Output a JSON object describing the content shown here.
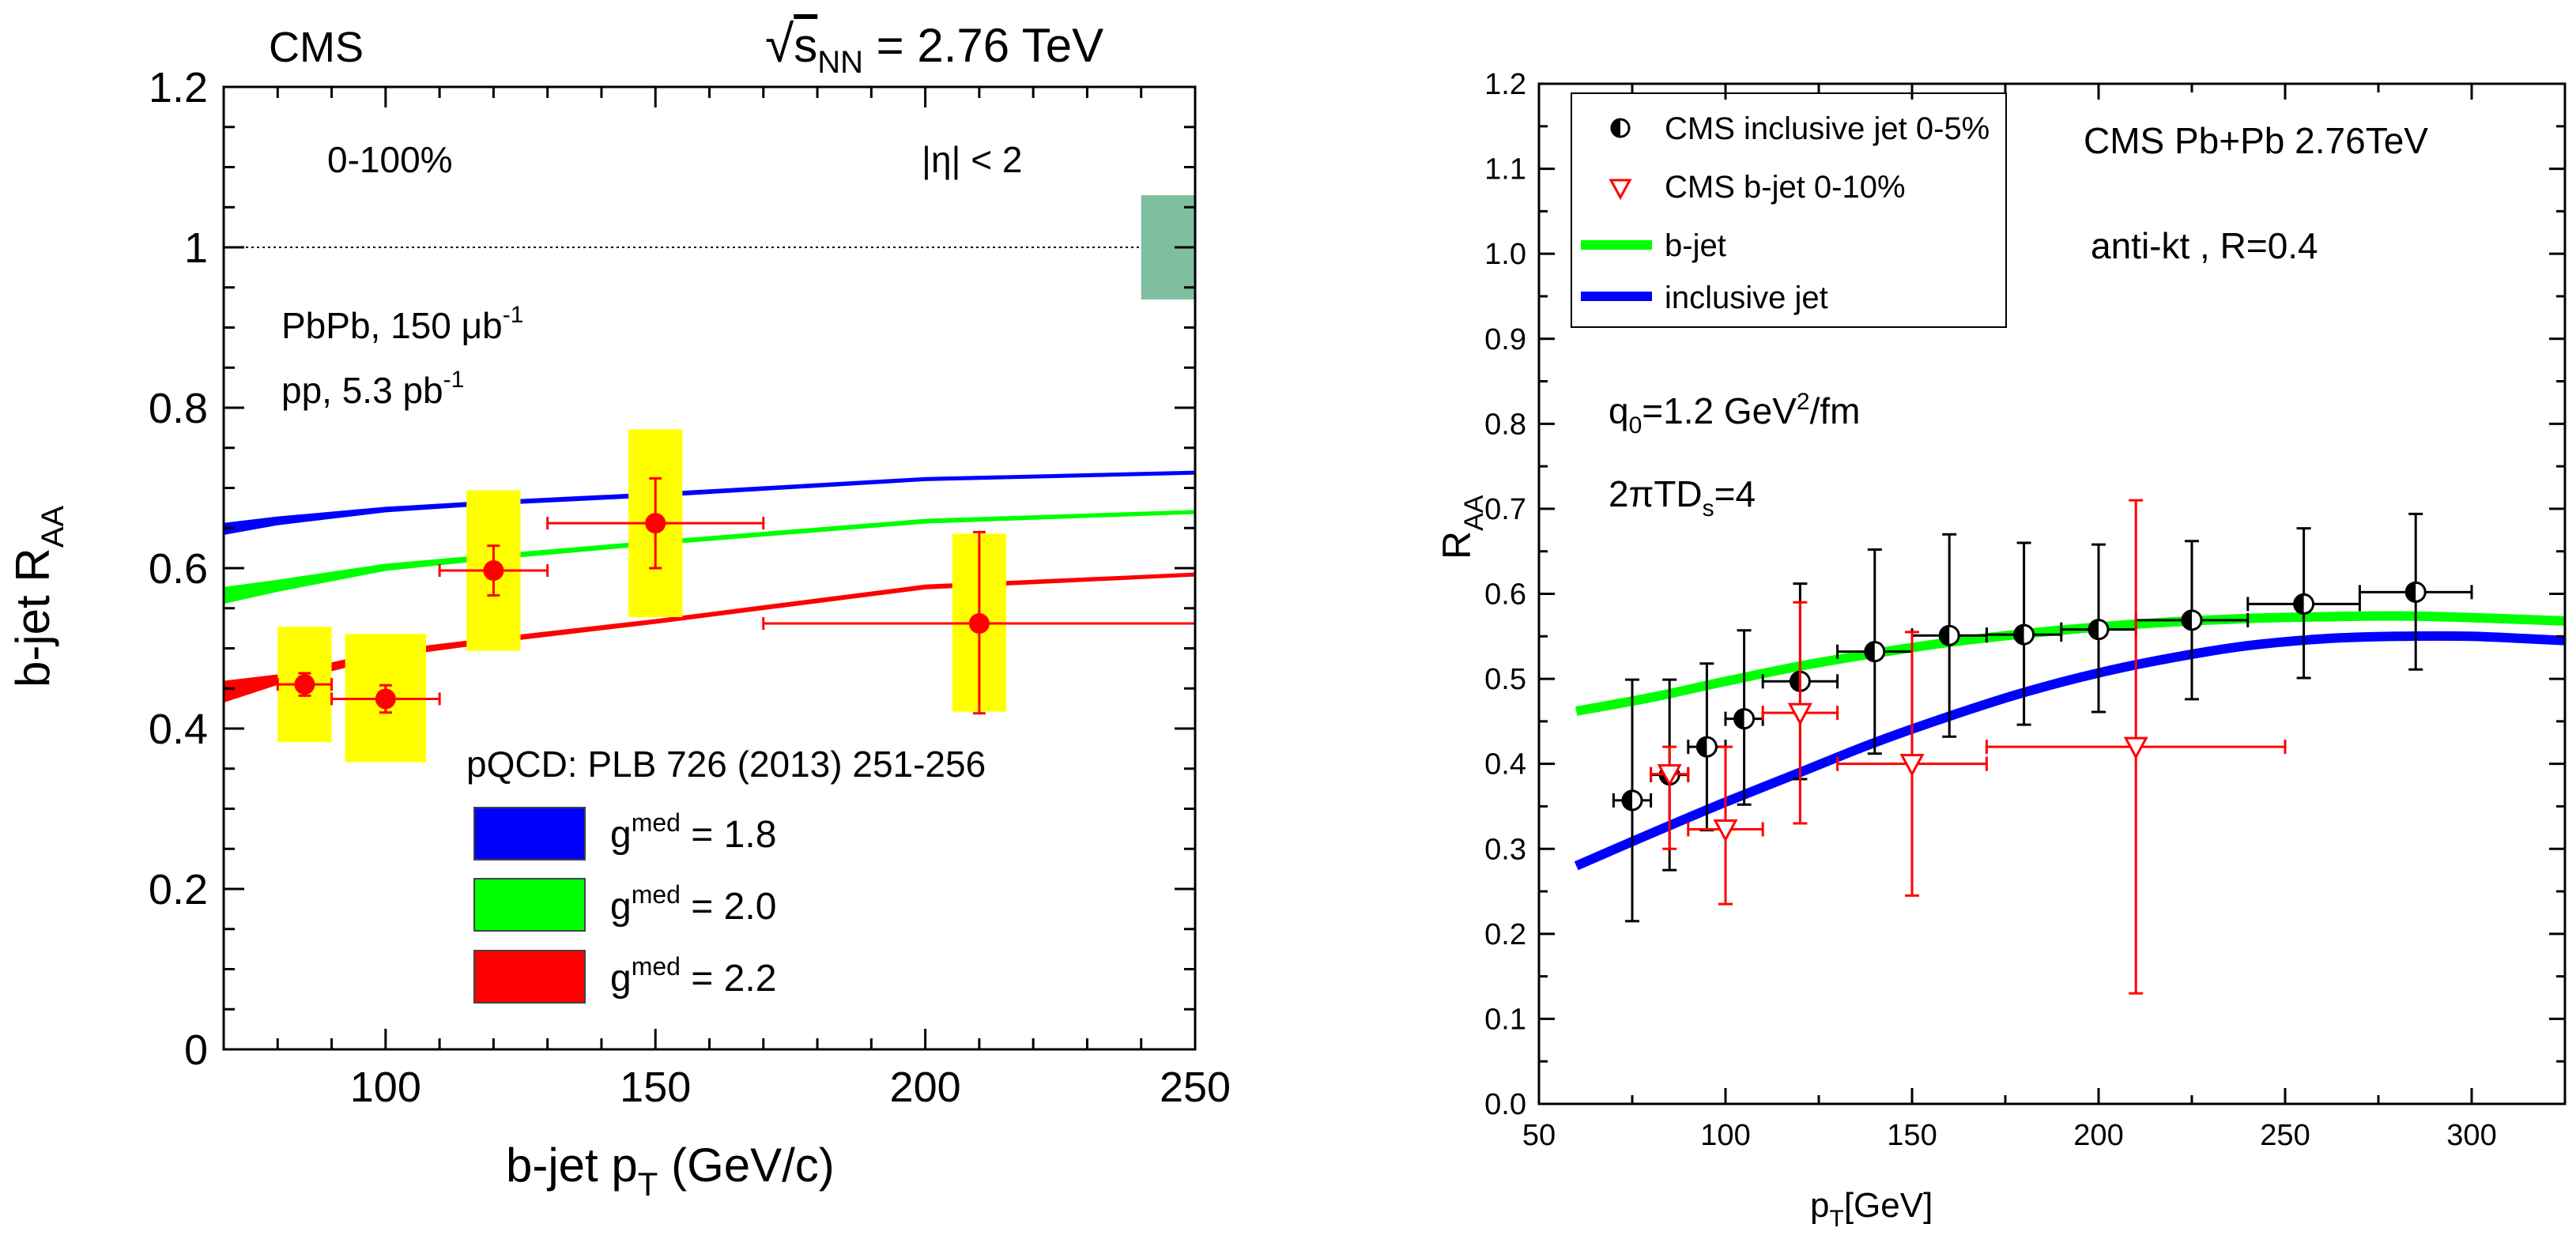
{
  "chart_data": [
    {
      "type": "line",
      "panel": "left",
      "header_left": "CMS",
      "header_right_prefix": "√",
      "header_right_s": "s",
      "header_right_sub": "NN",
      "header_right_value": " = 2.76 TeV",
      "ylabel_main": "b-jet R",
      "ylabel_sub": "AA",
      "xlabel_main": "b-jet p",
      "xlabel_sub": "T",
      "xlabel_unit": " (GeV/c)",
      "xlim": [
        70,
        250
      ],
      "ylim": [
        0,
        1.2
      ],
      "xticks": [
        100,
        150,
        200,
        250
      ],
      "yticks": [
        0,
        0.2,
        0.4,
        0.6,
        0.8,
        1,
        1.2
      ],
      "ytick_labels": [
        "0",
        "0.2",
        "0.4",
        "0.6",
        "0.8",
        "1",
        "1.2"
      ],
      "annotations": {
        "centrality": "0-100%",
        "eta_cut": "|η| < 2",
        "lumi_pbpb": "PbPb, 150 μb",
        "lumi_pbpb_sup": "-1",
        "lumi_pp": "pp, 5.3 pb",
        "lumi_pp_sup": "-1",
        "theory_ref": "pQCD: PLB 726 (2013) 251-256"
      },
      "reference_line": 1.0,
      "lumi_box": {
        "x": [
          240,
          250
        ],
        "y": [
          0.935,
          1.065
        ],
        "color": "#7fbf9f"
      },
      "theory_bands": [
        {
          "name": "g",
          "sup": "med",
          "value_label": " = 1.8",
          "color": "#0000ff",
          "x": [
            70,
            80,
            100,
            120,
            150,
            200,
            250
          ],
          "y_low": [
            0.643,
            0.655,
            0.671,
            0.68,
            0.69,
            0.71,
            0.718
          ],
          "y_high": [
            0.655,
            0.663,
            0.675,
            0.683,
            0.693,
            0.712,
            0.72
          ]
        },
        {
          "name": "g",
          "sup": "med",
          "value_label": " = 2.0",
          "color": "#00ff00",
          "x": [
            70,
            80,
            100,
            120,
            150,
            200,
            250
          ],
          "y_low": [
            0.557,
            0.572,
            0.598,
            0.612,
            0.63,
            0.657,
            0.669
          ],
          "y_high": [
            0.575,
            0.584,
            0.604,
            0.616,
            0.633,
            0.66,
            0.671
          ]
        },
        {
          "name": "g",
          "sup": "med",
          "value_label": " = 2.2",
          "color": "#ff0000",
          "x": [
            70,
            80,
            100,
            120,
            150,
            200,
            250
          ],
          "y_low": [
            0.434,
            0.456,
            0.49,
            0.508,
            0.532,
            0.575,
            0.591
          ],
          "y_high": [
            0.458,
            0.466,
            0.496,
            0.512,
            0.535,
            0.578,
            0.593
          ]
        }
      ],
      "data_points": [
        {
          "x": 85,
          "y": 0.455,
          "xlo": 80,
          "xhi": 90,
          "ylo": 0.441,
          "yhi": 0.469,
          "syst_lo": 0.383,
          "syst_hi": 0.527,
          "syst_x": [
            80,
            90
          ]
        },
        {
          "x": 100,
          "y": 0.437,
          "xlo": 90,
          "xhi": 110,
          "ylo": 0.42,
          "yhi": 0.454,
          "syst_lo": 0.358,
          "syst_hi": 0.518,
          "syst_x": [
            92.5,
            107.5
          ]
        },
        {
          "x": 120,
          "y": 0.597,
          "xlo": 110,
          "xhi": 130,
          "ylo": 0.566,
          "yhi": 0.628,
          "syst_lo": 0.497,
          "syst_hi": 0.697,
          "syst_x": [
            115,
            125
          ]
        },
        {
          "x": 150,
          "y": 0.656,
          "xlo": 130,
          "xhi": 170,
          "ylo": 0.6,
          "yhi": 0.712,
          "syst_lo": 0.539,
          "syst_hi": 0.773,
          "syst_x": [
            145,
            155
          ]
        },
        {
          "x": 210,
          "y": 0.531,
          "xlo": 170,
          "xhi": 250,
          "ylo": 0.419,
          "yhi": 0.645,
          "syst_lo": 0.421,
          "syst_hi": 0.643,
          "syst_x": [
            205,
            215
          ]
        }
      ]
    },
    {
      "type": "line",
      "panel": "right",
      "ylabel_main": "R",
      "ylabel_sub": "AA",
      "xlabel_main": "p",
      "xlabel_sub": "T",
      "xlabel_unit": "[GeV]",
      "xlim": [
        50,
        325
      ],
      "ylim": [
        0,
        1.2
      ],
      "xticks": [
        50,
        100,
        150,
        200,
        250,
        300
      ],
      "yticks": [
        0,
        0.1,
        0.2,
        0.3,
        0.4,
        0.5,
        0.6,
        0.7,
        0.8,
        0.9,
        1.0,
        1.1,
        1.2
      ],
      "ytick_labels": [
        "0.0",
        "0.1",
        "0.2",
        "0.3",
        "0.4",
        "0.5",
        "0.6",
        "0.7",
        "0.8",
        "0.9",
        "1.0",
        "1.1",
        "1.2"
      ],
      "annotations": {
        "system": "CMS Pb+Pb 2.76TeV",
        "algorithm": "anti-kt , R=0.4",
        "qhat_prefix": "q",
        "qhat_sub": "0",
        "qhat_mid": "=1.2 GeV",
        "qhat_sup": "2",
        "qhat_suffix": "/fm",
        "ds_prefix": "2πTD",
        "ds_sub": "s",
        "ds_suffix": "=4"
      },
      "legend": [
        {
          "label": "CMS inclusive jet 0-5%",
          "kind": "half-circle",
          "color": "#000000"
        },
        {
          "label": "CMS b-jet 0-10%",
          "kind": "down-triangle",
          "color": "#ff0000"
        },
        {
          "label": "b-jet",
          "kind": "line",
          "color": "#00ff00"
        },
        {
          "label": "inclusive jet",
          "kind": "line",
          "color": "#0000ff"
        }
      ],
      "series": [
        {
          "name": "b-jet",
          "color": "#00ff00",
          "x": [
            60,
            80,
            100,
            120,
            140,
            160,
            180,
            200,
            220,
            240,
            260,
            280,
            300,
            325
          ],
          "y": [
            0.462,
            0.478,
            0.497,
            0.515,
            0.53,
            0.543,
            0.553,
            0.561,
            0.567,
            0.571,
            0.573,
            0.574,
            0.572,
            0.568
          ]
        },
        {
          "name": "inclusive jet",
          "color": "#0000ff",
          "x": [
            60,
            80,
            100,
            120,
            140,
            160,
            180,
            200,
            220,
            240,
            260,
            280,
            300,
            325
          ],
          "y": [
            0.28,
            0.318,
            0.355,
            0.39,
            0.425,
            0.456,
            0.484,
            0.507,
            0.525,
            0.539,
            0.547,
            0.55,
            0.55,
            0.545
          ]
        }
      ],
      "inclusive_points": [
        {
          "x": 75,
          "y": 0.357,
          "xlo": 70,
          "xhi": 80,
          "ylo": 0.215,
          "yhi": 0.499
        },
        {
          "x": 85,
          "y": 0.387,
          "xlo": 80,
          "xhi": 90,
          "ylo": 0.275,
          "yhi": 0.499
        },
        {
          "x": 95,
          "y": 0.42,
          "xlo": 90,
          "xhi": 100,
          "ylo": 0.322,
          "yhi": 0.518
        },
        {
          "x": 105,
          "y": 0.453,
          "xlo": 100,
          "xhi": 110,
          "ylo": 0.352,
          "yhi": 0.557
        },
        {
          "x": 120,
          "y": 0.497,
          "xlo": 110,
          "xhi": 130,
          "ylo": 0.382,
          "yhi": 0.612
        },
        {
          "x": 140,
          "y": 0.532,
          "xlo": 130,
          "xhi": 150,
          "ylo": 0.412,
          "yhi": 0.652
        },
        {
          "x": 160,
          "y": 0.551,
          "xlo": 150,
          "xhi": 170,
          "ylo": 0.432,
          "yhi": 0.67
        },
        {
          "x": 180,
          "y": 0.552,
          "xlo": 170,
          "xhi": 190,
          "ylo": 0.446,
          "yhi": 0.66
        },
        {
          "x": 200,
          "y": 0.558,
          "xlo": 190,
          "xhi": 210,
          "ylo": 0.461,
          "yhi": 0.658
        },
        {
          "x": 225,
          "y": 0.569,
          "xlo": 210,
          "xhi": 240,
          "ylo": 0.476,
          "yhi": 0.662
        },
        {
          "x": 255,
          "y": 0.588,
          "xlo": 240,
          "xhi": 270,
          "ylo": 0.501,
          "yhi": 0.677
        },
        {
          "x": 285,
          "y": 0.602,
          "xlo": 270,
          "xhi": 300,
          "ylo": 0.511,
          "yhi": 0.694
        }
      ],
      "bjet_points": [
        {
          "x": 85,
          "y": 0.388,
          "xlo": 80,
          "xhi": 90,
          "ylo": 0.3,
          "yhi": 0.42
        },
        {
          "x": 100,
          "y": 0.323,
          "xlo": 90,
          "xhi": 110,
          "ylo": 0.235,
          "yhi": 0.42
        },
        {
          "x": 120,
          "y": 0.46,
          "xlo": 110,
          "xhi": 130,
          "ylo": 0.33,
          "yhi": 0.59
        },
        {
          "x": 150,
          "y": 0.4,
          "xlo": 130,
          "xhi": 170,
          "ylo": 0.245,
          "yhi": 0.555
        },
        {
          "x": 210,
          "y": 0.42,
          "xlo": 170,
          "xhi": 250,
          "ylo": 0.13,
          "yhi": 0.71
        }
      ]
    }
  ]
}
